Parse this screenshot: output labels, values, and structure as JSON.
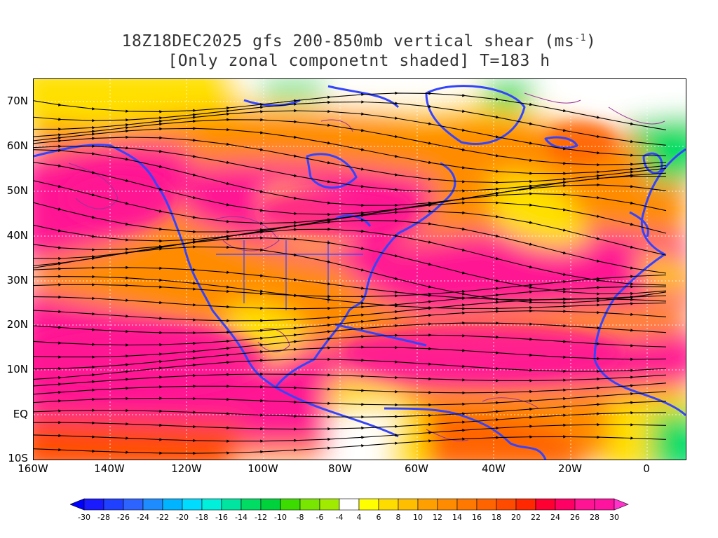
{
  "title": {
    "line1_prefix": "18Z18DEC2025 gfs 200-850mb vertical shear (ms",
    "line1_sup": "-1",
    "line1_suffix": ")",
    "line2": "[Only zonal componetnt shaded] T=183 h"
  },
  "axes": {
    "lat_labels": [
      "70N",
      "60N",
      "50N",
      "40N",
      "30N",
      "20N",
      "10N",
      "EQ",
      "10S"
    ],
    "lon_labels": [
      "160W",
      "140W",
      "120W",
      "100W",
      "80W",
      "60W",
      "40W",
      "20W",
      "0"
    ],
    "lat_range": [
      -10,
      75
    ],
    "lon_range": [
      -160,
      10
    ]
  },
  "colorbar": {
    "labels": [
      "-30",
      "-28",
      "-26",
      "-24",
      "-22",
      "-20",
      "-18",
      "-16",
      "-14",
      "-12",
      "-10",
      "-8",
      "-6",
      "-4",
      "4",
      "6",
      "8",
      "10",
      "12",
      "14",
      "16",
      "18",
      "20",
      "22",
      "24",
      "26",
      "28",
      "30"
    ],
    "colors": [
      "#1a1aff",
      "#2040ff",
      "#2d64ff",
      "#1e8cff",
      "#00b4ff",
      "#00dcff",
      "#00f0dc",
      "#00e6a0",
      "#00dc64",
      "#00d23c",
      "#3cdc00",
      "#78e600",
      "#a0eb00",
      "#ffffff",
      "#ffff00",
      "#ffdc00",
      "#ffbe00",
      "#ffa000",
      "#ff8c00",
      "#ff7800",
      "#ff6400",
      "#ff4b00",
      "#ff2800",
      "#ff0032",
      "#ff0064",
      "#ff1493",
      "#ff14a0"
    ],
    "left_arrow_color": "#0000ff",
    "right_arrow_color": "#ff33cc"
  },
  "legend_colors": {
    "shear_high": "#ff1493",
    "coastline": "#3344ff",
    "streamline": "#000000",
    "contour": "#993399"
  }
}
